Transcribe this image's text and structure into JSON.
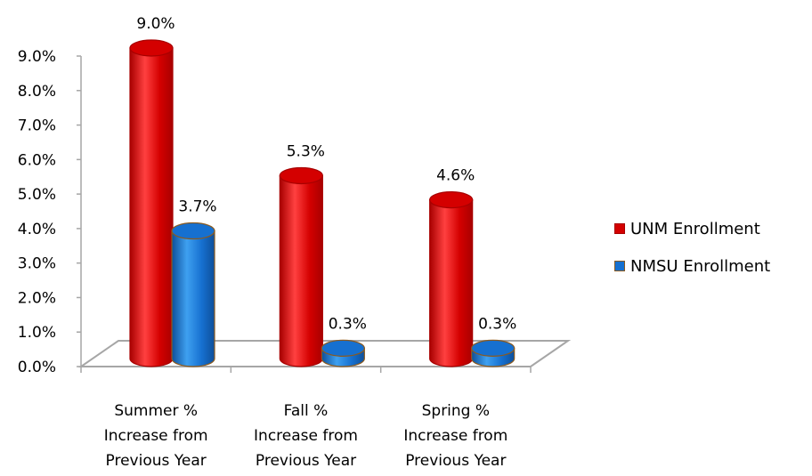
{
  "chart_data": {
    "type": "bar",
    "categories": [
      [
        "Summer %",
        "Increase from",
        "Previous Year"
      ],
      [
        "Fall %",
        "Increase from",
        "Previous Year"
      ],
      [
        "Spring %",
        "Increase from",
        "Previous Year"
      ]
    ],
    "series": [
      {
        "name": "UNM Enrollment",
        "values": [
          9.0,
          5.3,
          4.6
        ],
        "labels": [
          "9.0%",
          "5.3%",
          "4.6%"
        ],
        "color": "#d40000",
        "dark": "#a80000",
        "light": "#ff4040"
      },
      {
        "name": "NMSU Enrollment",
        "values": [
          3.7,
          0.3,
          0.3
        ],
        "labels": [
          "3.7%",
          "0.3%",
          "0.3%"
        ],
        "color": "#1670d0",
        "dark": "#0e4f9a",
        "light": "#3ea0f0"
      }
    ],
    "yticks": [
      "0.0%",
      "1.0%",
      "2.0%",
      "3.0%",
      "4.0%",
      "5.0%",
      "6.0%",
      "7.0%",
      "8.0%",
      "9.0%"
    ],
    "ylim": [
      0,
      9
    ],
    "legend_position": "right",
    "style": "3d-cylinder"
  }
}
